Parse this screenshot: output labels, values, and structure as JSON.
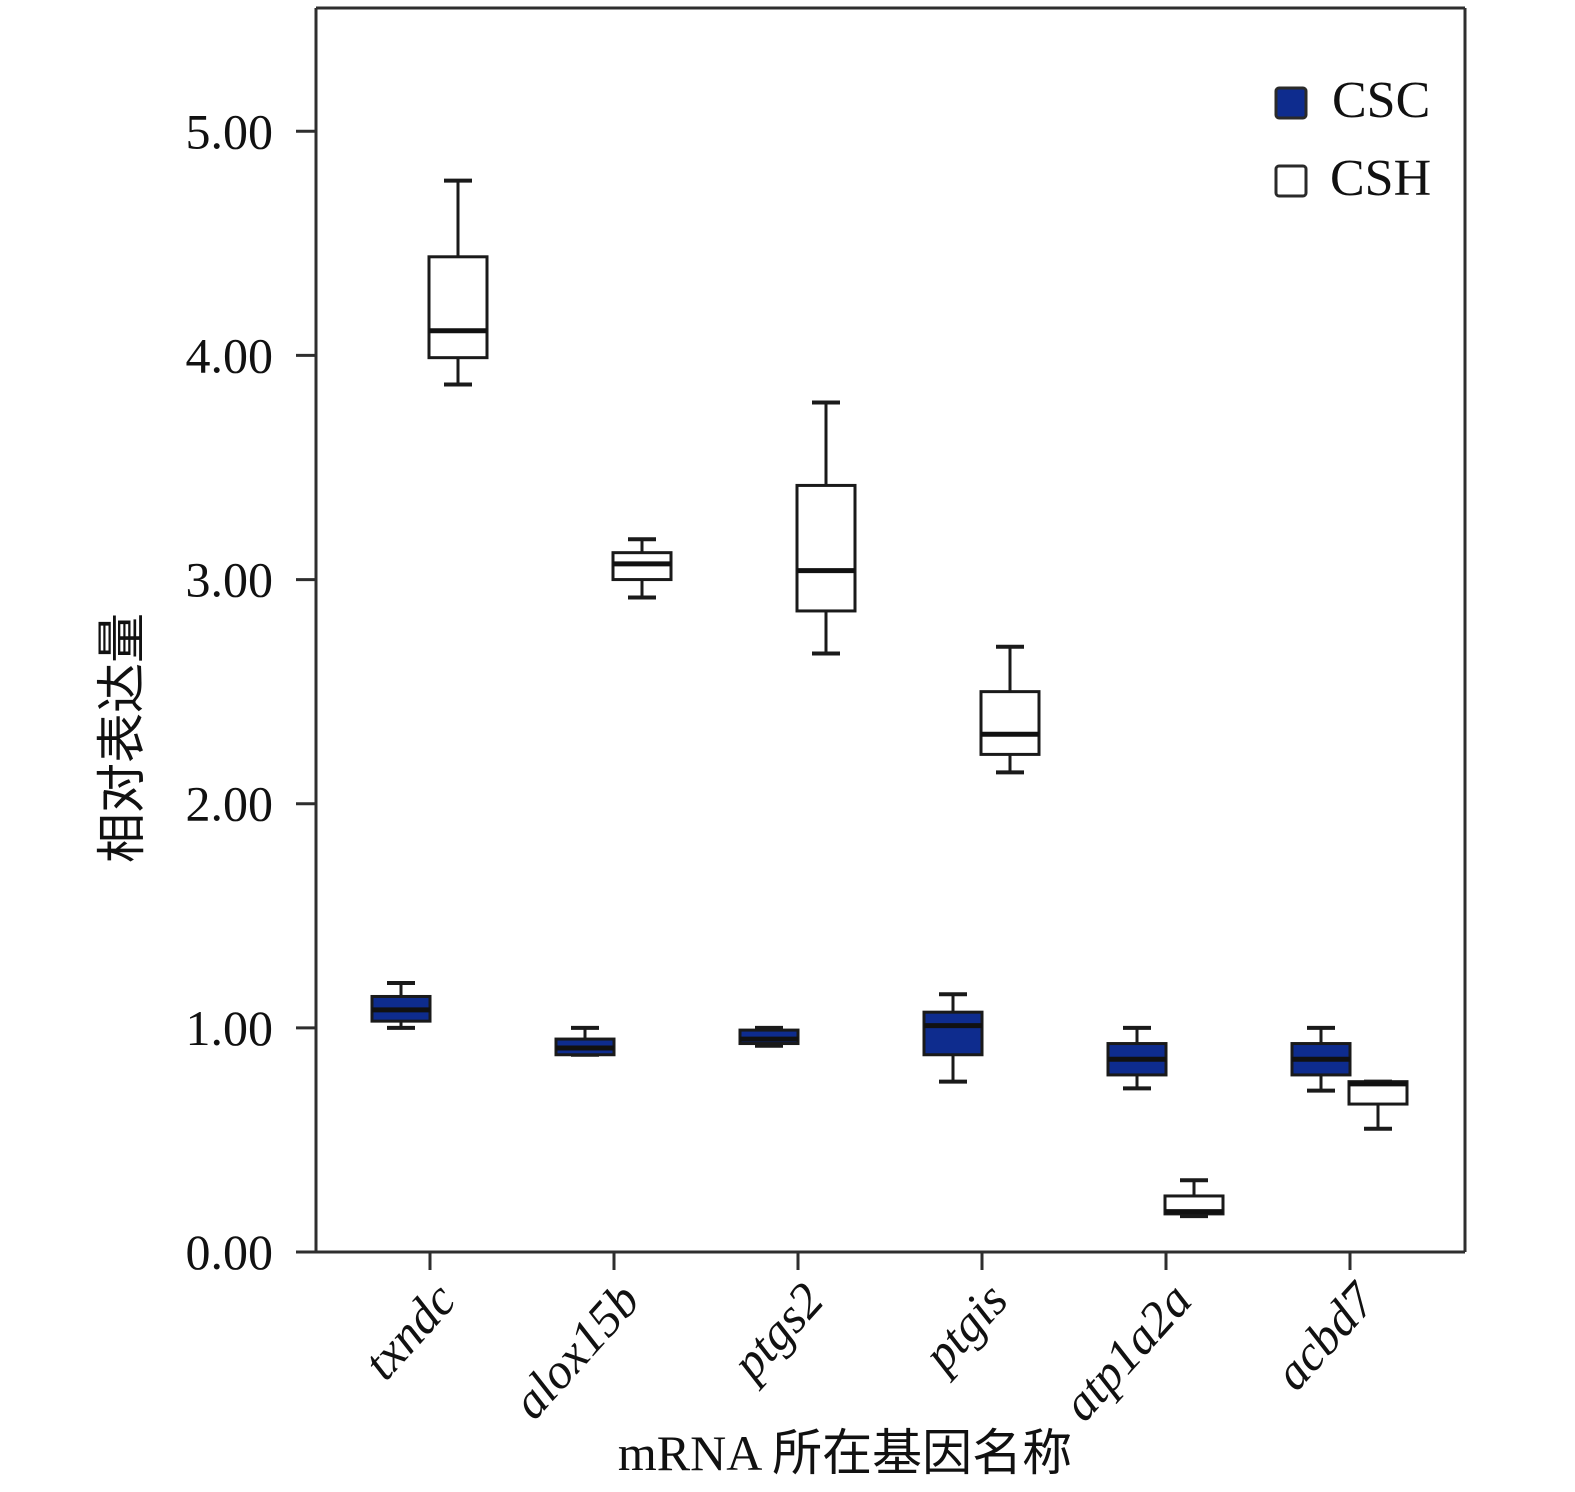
{
  "chart_data": {
    "type": "box",
    "xlabel": "mRNA 所在基因名称",
    "ylabel": "相对表达量",
    "categories": [
      "txndc",
      "alox15b",
      "ptgs2",
      "ptgis",
      "atp1a2a",
      "acbd7"
    ],
    "ylim": [
      0,
      5.55
    ],
    "yticks": [
      0,
      1,
      2,
      3,
      4,
      5
    ],
    "ytick_labels": [
      "0.00",
      "1.00",
      "2.00",
      "3.00",
      "4.00",
      "5.00"
    ],
    "grid": false,
    "legend_position": "top-right",
    "series": [
      {
        "name": "CSC",
        "color": "#0e2c8e",
        "boxes": [
          {
            "whisker_low": 1.0,
            "q1": 1.03,
            "median": 1.08,
            "q3": 1.14,
            "whisker_high": 1.2
          },
          {
            "whisker_low": 0.88,
            "q1": 0.88,
            "median": 0.91,
            "q3": 0.95,
            "whisker_high": 1.0
          },
          {
            "whisker_low": 0.92,
            "q1": 0.93,
            "median": 0.95,
            "q3": 0.99,
            "whisker_high": 1.0
          },
          {
            "whisker_low": 0.76,
            "q1": 0.88,
            "median": 1.01,
            "q3": 1.07,
            "whisker_high": 1.15
          },
          {
            "whisker_low": 0.73,
            "q1": 0.79,
            "median": 0.86,
            "q3": 0.93,
            "whisker_high": 1.0
          },
          {
            "whisker_low": 0.72,
            "q1": 0.79,
            "median": 0.86,
            "q3": 0.93,
            "whisker_high": 1.0
          }
        ]
      },
      {
        "name": "CSH",
        "color": "#ffffff",
        "boxes": [
          {
            "whisker_low": 3.87,
            "q1": 3.99,
            "median": 4.11,
            "q3": 4.44,
            "whisker_high": 4.78
          },
          {
            "whisker_low": 2.92,
            "q1": 3.0,
            "median": 3.07,
            "q3": 3.12,
            "whisker_high": 3.18
          },
          {
            "whisker_low": 2.67,
            "q1": 2.86,
            "median": 3.04,
            "q3": 3.42,
            "whisker_high": 3.79
          },
          {
            "whisker_low": 2.14,
            "q1": 2.22,
            "median": 2.31,
            "q3": 2.5,
            "whisker_high": 2.7
          },
          {
            "whisker_low": 0.16,
            "q1": 0.17,
            "median": 0.18,
            "q3": 0.25,
            "whisker_high": 0.32
          },
          {
            "whisker_low": 0.55,
            "q1": 0.66,
            "median": 0.75,
            "q3": 0.76,
            "whisker_high": 0.76
          }
        ]
      }
    ]
  }
}
